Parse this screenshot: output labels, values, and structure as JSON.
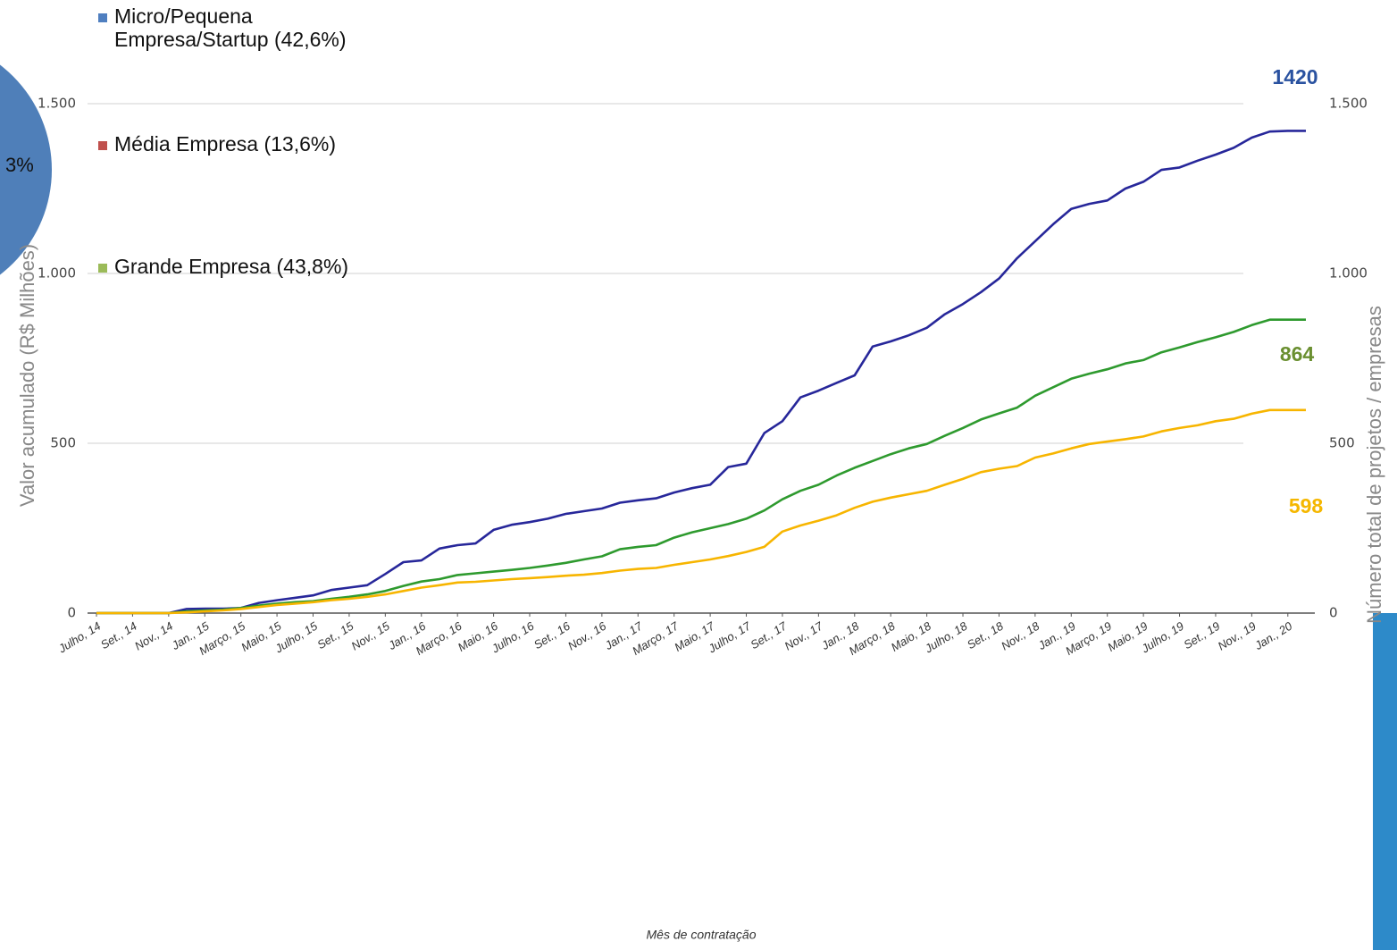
{
  "chart_data": {
    "type": "line",
    "y_axis_title": "Valor acumulado (R$ Milhões)",
    "y2_axis_title": "Número total de projetos / empresas",
    "x_axis_title": "Mês de contratação",
    "categories": [
      "Julho, 14",
      null,
      "Set., 14",
      null,
      "Nov., 14",
      null,
      "Jan., 15",
      null,
      "Março, 15",
      null,
      "Maio, 15",
      null,
      "Julho, 15",
      null,
      "Set., 15",
      null,
      "Nov., 15",
      null,
      "Jan., 16",
      null,
      "Março, 16",
      null,
      "Maio, 16",
      null,
      "Julho, 16",
      null,
      "Set., 16",
      null,
      "Nov., 16",
      null,
      "Jan., 17",
      null,
      "Março, 17",
      null,
      "Maio, 17",
      null,
      "Julho, 17",
      null,
      "Set., 17",
      null,
      "Nov., 17",
      null,
      "Jan., 18",
      null,
      "Março, 18",
      null,
      "Maio, 18",
      null,
      "Julho, 18",
      null,
      "Set., 18",
      null,
      "Nov., 18",
      null,
      "Jan., 19",
      null,
      "Março, 19",
      null,
      "Maio, 19",
      null,
      "Julho, 19",
      null,
      "Set., 19",
      null,
      "Nov., 19",
      null,
      "Jan., 20",
      null
    ],
    "series": [
      {
        "color": "#27279a",
        "label_color": "#2a52a0",
        "values": [
          0,
          0,
          0,
          0,
          0,
          12,
          13,
          13,
          15,
          30,
          38,
          45,
          52,
          68,
          75,
          82,
          115,
          150,
          155,
          190,
          200,
          205,
          245,
          260,
          268,
          278,
          292,
          300,
          308,
          325,
          332,
          338,
          355,
          368,
          378,
          430,
          440,
          530,
          565,
          635,
          655,
          678,
          700,
          785,
          800,
          818,
          840,
          880,
          910,
          945,
          985,
          1045,
          1095,
          1145,
          1190,
          1205,
          1215,
          1250,
          1270,
          1305,
          1312,
          1332,
          1350,
          1370,
          1400,
          1418,
          1420,
          1420
        ]
      },
      {
        "color": "#2e9a2e",
        "label_color": "#6a8f30",
        "values": [
          0,
          0,
          0,
          0,
          0,
          5,
          8,
          10,
          15,
          22,
          28,
          32,
          35,
          42,
          48,
          55,
          65,
          80,
          93,
          100,
          112,
          117,
          122,
          127,
          133,
          140,
          148,
          158,
          167,
          188,
          195,
          200,
          222,
          238,
          250,
          262,
          278,
          302,
          335,
          360,
          378,
          405,
          428,
          448,
          468,
          485,
          498,
          522,
          545,
          570,
          588,
          605,
          640,
          665,
          690,
          705,
          718,
          735,
          745,
          768,
          782,
          798,
          812,
          828,
          848,
          864,
          864,
          864
        ]
      },
      {
        "color": "#f7b500",
        "label_color": "#f5b700",
        "values": [
          0,
          0,
          0,
          0,
          0,
          2,
          5,
          8,
          12,
          18,
          24,
          28,
          32,
          38,
          42,
          48,
          55,
          65,
          75,
          82,
          90,
          92,
          96,
          100,
          103,
          106,
          110,
          113,
          118,
          125,
          130,
          133,
          142,
          150,
          158,
          168,
          180,
          195,
          240,
          258,
          272,
          288,
          310,
          328,
          340,
          350,
          360,
          378,
          395,
          415,
          425,
          433,
          458,
          470,
          485,
          498,
          505,
          512,
          520,
          535,
          545,
          553,
          565,
          572,
          587,
          598,
          598,
          598
        ]
      }
    ],
    "ylim": [
      0,
      1500
    ],
    "yticks": [
      0,
      500,
      {
        "value": 1000,
        "label": "1.000"
      },
      {
        "value": 1500,
        "label": "1.500"
      }
    ],
    "y2lim": [
      0,
      1500
    ],
    "y2ticks": [
      0,
      500,
      {
        "value": 1000,
        "label": "1.000"
      },
      {
        "value": 1500,
        "label": "1.500"
      }
    ],
    "grid": true
  },
  "pie_legend": [
    {
      "label": "Micro/Pequena\nEmpresa/Startup (42,6%)",
      "color": "#4f7fc0"
    },
    {
      "label": "Média Empresa (13,6%)",
      "color": "#c0504d"
    },
    {
      "label": "Grande Empresa (43,8%)",
      "color": "#9bbb59"
    }
  ],
  "pie_fragment_label": "3%"
}
